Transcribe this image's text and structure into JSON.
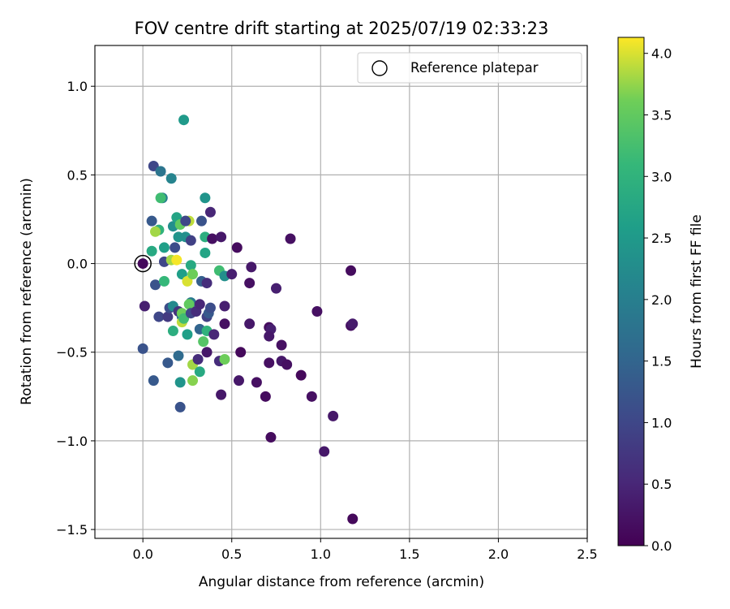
{
  "chart_data": {
    "type": "scatter",
    "title": "FOV centre drift starting at 2025/07/19 02:33:23",
    "xlabel": "Angular distance from reference (arcmin)",
    "ylabel": "Rotation from reference (arcmin)",
    "xlim": [
      -0.27,
      2.5
    ],
    "ylim": [
      -1.55,
      1.23
    ],
    "xticks": [
      0.0,
      0.5,
      1.0,
      1.5,
      2.0,
      2.5
    ],
    "xtick_labels": [
      "0.0",
      "0.5",
      "1.0",
      "1.5",
      "2.0",
      "2.5"
    ],
    "yticks": [
      1.0,
      0.5,
      0.0,
      -0.5,
      -1.0,
      -1.5
    ],
    "ytick_labels": [
      "1.0",
      "0.5",
      "0.0",
      "−0.5",
      "−1.0",
      "−1.5"
    ],
    "grid": true,
    "legend": {
      "placement": "top-right",
      "entries": [
        "Reference platepar"
      ]
    },
    "reference_point": {
      "x": 0.0,
      "y": 0.0
    },
    "colorbar": {
      "label": "Hours from first FF file",
      "colormap": "viridis",
      "range": [
        0.0,
        4.13
      ],
      "ticks": [
        0.0,
        0.5,
        1.0,
        1.5,
        2.0,
        2.5,
        3.0,
        3.5,
        4.0
      ],
      "tick_labels": [
        "0.0",
        "0.5",
        "1.0",
        "1.5",
        "2.0",
        "2.5",
        "3.0",
        "3.5",
        "4.0"
      ]
    },
    "points": [
      [
        0.0,
        0.0,
        0.1
      ],
      [
        0.01,
        -0.24,
        0.4
      ],
      [
        0.0,
        -0.48,
        1.2
      ],
      [
        0.06,
        0.55,
        1.0
      ],
      [
        0.1,
        0.52,
        1.8
      ],
      [
        0.16,
        0.48,
        2.1
      ],
      [
        0.23,
        0.81,
        2.5
      ],
      [
        0.05,
        0.24,
        1.3
      ],
      [
        0.11,
        0.37,
        2.0
      ],
      [
        0.1,
        0.37,
        3.2
      ],
      [
        0.09,
        0.19,
        3.0
      ],
      [
        0.07,
        0.18,
        3.8
      ],
      [
        0.05,
        0.07,
        2.8
      ],
      [
        0.12,
        0.09,
        2.6
      ],
      [
        0.17,
        0.21,
        2.3
      ],
      [
        0.19,
        0.26,
        2.7
      ],
      [
        0.2,
        0.15,
        2.4
      ],
      [
        0.18,
        0.09,
        1.1
      ],
      [
        0.21,
        0.22,
        3.5
      ],
      [
        0.24,
        0.24,
        3.7
      ],
      [
        0.24,
        0.15,
        2.3
      ],
      [
        0.26,
        0.24,
        3.9
      ],
      [
        0.27,
        0.13,
        0.9
      ],
      [
        0.24,
        0.24,
        1.0
      ],
      [
        0.33,
        0.24,
        1.2
      ],
      [
        0.35,
        0.37,
        2.4
      ],
      [
        0.38,
        0.29,
        0.5
      ],
      [
        0.35,
        0.15,
        2.9
      ],
      [
        0.39,
        0.14,
        0.2
      ],
      [
        0.44,
        0.15,
        0.3
      ],
      [
        0.35,
        0.06,
        2.7
      ],
      [
        0.53,
        0.09,
        0.15
      ],
      [
        0.61,
        -0.02,
        0.3
      ],
      [
        0.83,
        0.14,
        0.2
      ],
      [
        1.17,
        -0.04,
        0.15
      ],
      [
        0.12,
        0.01,
        1.0
      ],
      [
        0.16,
        0.02,
        3.8
      ],
      [
        0.19,
        0.02,
        4.1
      ],
      [
        0.22,
        -0.06,
        2.6
      ],
      [
        0.25,
        -0.1,
        4.0
      ],
      [
        0.27,
        -0.01,
        2.8
      ],
      [
        0.28,
        -0.06,
        3.6
      ],
      [
        0.33,
        -0.1,
        1.4
      ],
      [
        0.36,
        -0.11,
        0.6
      ],
      [
        0.43,
        -0.04,
        3.2
      ],
      [
        0.46,
        -0.07,
        2.3
      ],
      [
        0.5,
        -0.06,
        0.4
      ],
      [
        0.6,
        -0.11,
        0.2
      ],
      [
        0.75,
        -0.14,
        0.4
      ],
      [
        0.07,
        -0.12,
        1.2
      ],
      [
        0.12,
        -0.1,
        3.1
      ],
      [
        0.09,
        -0.3,
        1.0
      ],
      [
        0.14,
        -0.3,
        0.8
      ],
      [
        0.15,
        -0.25,
        1.1
      ],
      [
        0.17,
        -0.24,
        2.2
      ],
      [
        0.17,
        -0.38,
        2.9
      ],
      [
        0.2,
        -0.27,
        0.7
      ],
      [
        0.22,
        -0.3,
        1.7
      ],
      [
        0.22,
        -0.33,
        3.9
      ],
      [
        0.22,
        -0.28,
        3.6
      ],
      [
        0.23,
        -0.31,
        3.2
      ],
      [
        0.25,
        -0.4,
        2.6
      ],
      [
        0.27,
        -0.22,
        1.9
      ],
      [
        0.26,
        -0.23,
        3.5
      ],
      [
        0.27,
        -0.28,
        1.0
      ],
      [
        0.3,
        -0.27,
        0.6
      ],
      [
        0.32,
        -0.23,
        0.5
      ],
      [
        0.32,
        -0.37,
        1.5
      ],
      [
        0.34,
        -0.44,
        3.4
      ],
      [
        0.36,
        -0.38,
        3.0
      ],
      [
        0.36,
        -0.3,
        0.9
      ],
      [
        0.37,
        -0.28,
        1.3
      ],
      [
        0.36,
        -0.5,
        0.3
      ],
      [
        0.38,
        -0.25,
        1.1
      ],
      [
        0.4,
        -0.4,
        0.5
      ],
      [
        0.46,
        -0.24,
        0.4
      ],
      [
        0.46,
        -0.34,
        0.2
      ],
      [
        0.6,
        -0.34,
        0.3
      ],
      [
        0.71,
        -0.36,
        0.15
      ],
      [
        0.72,
        -0.37,
        0.4
      ],
      [
        0.71,
        -0.41,
        0.3
      ],
      [
        0.78,
        -0.46,
        0.2
      ],
      [
        0.55,
        -0.5,
        0.1
      ],
      [
        0.14,
        -0.56,
        1.3
      ],
      [
        0.2,
        -0.52,
        1.6
      ],
      [
        0.28,
        -0.57,
        3.8
      ],
      [
        0.31,
        -0.54,
        0.6
      ],
      [
        0.32,
        -0.61,
        2.8
      ],
      [
        0.43,
        -0.55,
        0.6
      ],
      [
        0.46,
        -0.54,
        3.6
      ],
      [
        0.71,
        -0.56,
        0.2
      ],
      [
        0.78,
        -0.55,
        0.3
      ],
      [
        0.81,
        -0.57,
        0.2
      ],
      [
        0.06,
        -0.66,
        1.3
      ],
      [
        0.21,
        -0.67,
        2.4
      ],
      [
        0.28,
        -0.66,
        3.7
      ],
      [
        0.54,
        -0.66,
        0.3
      ],
      [
        0.64,
        -0.67,
        0.2
      ],
      [
        0.89,
        -0.63,
        0.1
      ],
      [
        0.44,
        -0.74,
        0.3
      ],
      [
        0.69,
        -0.75,
        0.15
      ],
      [
        0.95,
        -0.75,
        0.2
      ],
      [
        0.21,
        -0.81,
        1.2
      ],
      [
        1.07,
        -0.86,
        0.3
      ],
      [
        0.72,
        -0.98,
        0.15
      ],
      [
        1.02,
        -1.06,
        0.3
      ],
      [
        1.17,
        -0.35,
        0.2
      ],
      [
        1.18,
        -0.34,
        0.35
      ],
      [
        0.98,
        -0.27,
        0.2
      ],
      [
        1.18,
        -1.44,
        0.1
      ]
    ]
  }
}
